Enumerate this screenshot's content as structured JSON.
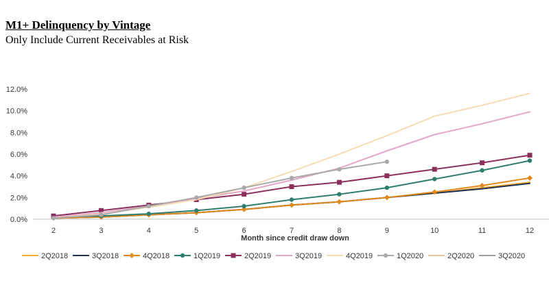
{
  "header": {
    "title": "M1+ Delinquency by Vintage",
    "subtitle": "Only Include Current Receivables at Risk"
  },
  "chart_data": {
    "type": "line",
    "title": "M1+ Delinquency by Vintage",
    "subtitle": "Only Include Current Receivables at Risk",
    "xlabel": "Month since credit draw down",
    "ylabel": "",
    "x": [
      2,
      3,
      4,
      5,
      6,
      7,
      8,
      9,
      10,
      11,
      12
    ],
    "ylim": [
      0,
      12
    ],
    "yticks": [
      0,
      2,
      4,
      6,
      8,
      10,
      12
    ],
    "ytick_labels": [
      "0.0%",
      "2.0%",
      "4.0%",
      "6.0%",
      "8.0%",
      "10.0%",
      "12.0%"
    ],
    "grid": false,
    "legend_position": "bottom",
    "series": [
      {
        "name": "2Q2018",
        "color": "#f0a830",
        "marker": "none",
        "values": [
          0.1,
          0.2,
          0.4,
          0.6,
          0.9,
          1.3,
          1.6,
          2.0,
          2.4,
          2.9,
          3.4
        ]
      },
      {
        "name": "3Q2018",
        "color": "#1f3050",
        "marker": "none",
        "values": [
          0.1,
          0.2,
          0.4,
          0.6,
          0.9,
          1.3,
          1.6,
          2.0,
          2.4,
          2.8,
          3.3
        ]
      },
      {
        "name": "4Q2018",
        "color": "#e08a1e",
        "marker": "diamond",
        "values": [
          0.1,
          0.2,
          0.4,
          0.6,
          0.9,
          1.3,
          1.6,
          2.0,
          2.5,
          3.1,
          3.8
        ]
      },
      {
        "name": "1Q2019",
        "color": "#2e7d6e",
        "marker": "circle",
        "values": [
          0.2,
          0.3,
          0.5,
          0.8,
          1.2,
          1.8,
          2.3,
          2.9,
          3.7,
          4.5,
          5.4
        ]
      },
      {
        "name": "2Q2019",
        "color": "#8b2f5c",
        "marker": "square",
        "values": [
          0.3,
          0.8,
          1.3,
          1.8,
          2.3,
          3.0,
          3.4,
          4.0,
          4.6,
          5.2,
          5.9
        ]
      },
      {
        "name": "3Q2019",
        "color": "#e6a6c8",
        "marker": "none",
        "values": [
          0.2,
          0.6,
          1.2,
          1.9,
          2.6,
          3.6,
          4.7,
          6.3,
          7.8,
          8.8,
          9.9
        ]
      },
      {
        "name": "4Q2019",
        "color": "#f6dcb4",
        "marker": "none",
        "values": [
          0.1,
          0.5,
          1.1,
          1.8,
          2.9,
          4.4,
          6.0,
          7.7,
          9.5,
          10.5,
          11.6
        ]
      },
      {
        "name": "1Q2020",
        "color": "#a9a9a9",
        "marker": "circle",
        "values": [
          0.1,
          0.4,
          1.2,
          2.0,
          2.9,
          3.8,
          4.6,
          5.3,
          null,
          null,
          null
        ]
      },
      {
        "name": "2Q2020",
        "color": "#e8c8a0",
        "marker": "none",
        "values": [
          null,
          null,
          null,
          null,
          null,
          null,
          null,
          null,
          null,
          null,
          null
        ]
      },
      {
        "name": "3Q2020",
        "color": "#9e9e9e",
        "marker": "none",
        "values": [
          null,
          null,
          null,
          null,
          null,
          null,
          null,
          null,
          null,
          null,
          null
        ]
      }
    ]
  }
}
